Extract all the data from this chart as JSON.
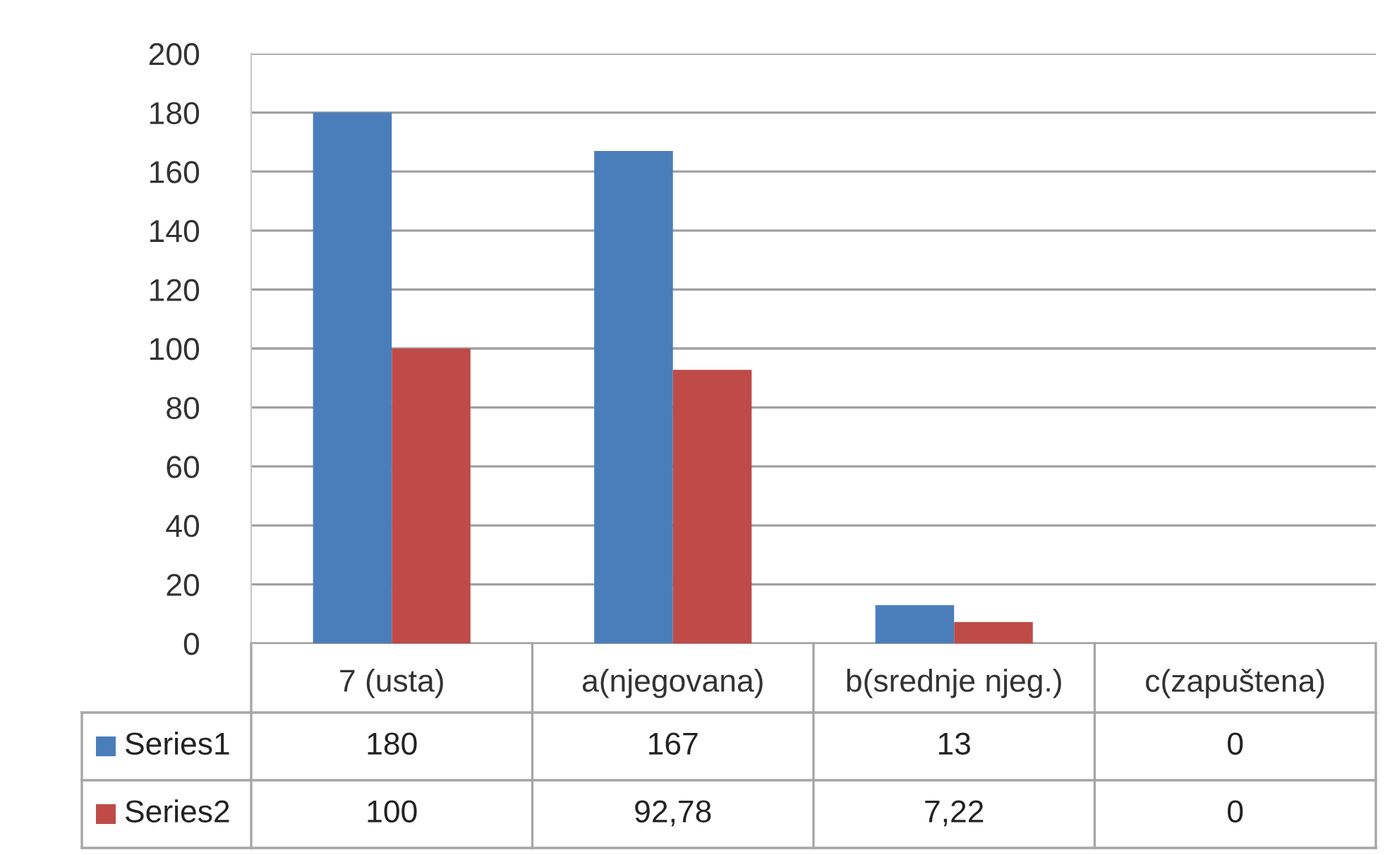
{
  "chart_data": {
    "type": "bar",
    "categories": [
      "7 (usta)",
      "a(njegovana)",
      "b(srednje njeg.)",
      "c(zapuštena)"
    ],
    "series": [
      {
        "name": "Series1",
        "color": "#4a7ebb",
        "values": [
          180,
          167,
          13,
          0
        ],
        "value_labels": [
          "180",
          "167",
          "13",
          "0"
        ]
      },
      {
        "name": "Series2",
        "color": "#be4b48",
        "values": [
          100,
          92.78,
          7.22,
          0
        ],
        "value_labels": [
          "100",
          "92,78",
          "7,22",
          "0"
        ]
      }
    ],
    "ylim": [
      0,
      200
    ],
    "yticks": [
      0,
      20,
      40,
      60,
      80,
      100,
      120,
      140,
      160,
      180,
      200
    ],
    "grid": "y",
    "legend": "bottom"
  }
}
